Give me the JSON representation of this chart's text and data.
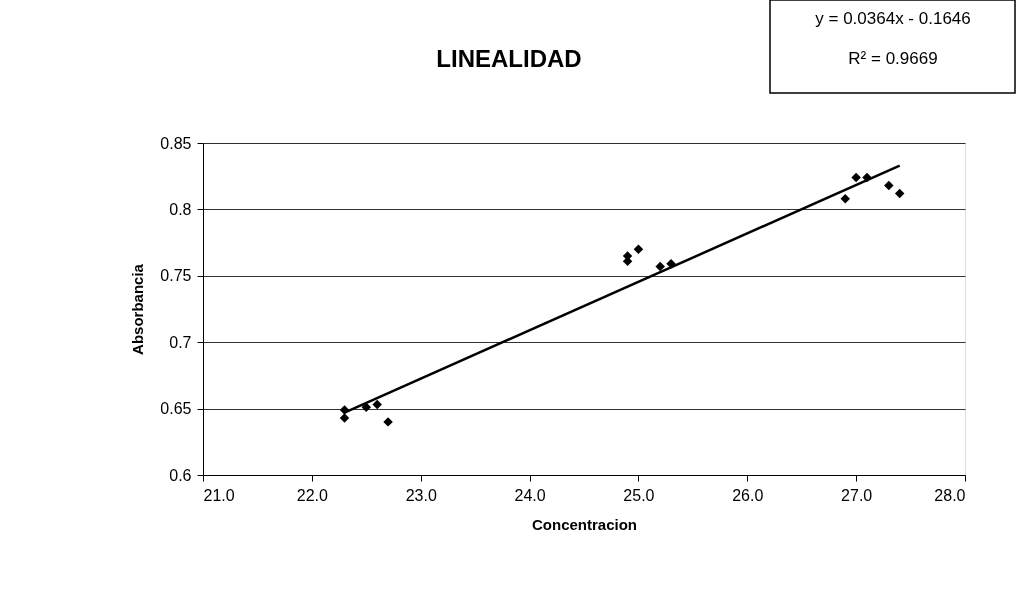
{
  "chart_data": {
    "type": "scatter",
    "title": "LINEALIDAD",
    "xlabel": "Concentracion",
    "ylabel": "Absorbancia",
    "annotations": [
      "y = 0.0364x - 0.1646",
      "R² = 0.9669"
    ],
    "xlim": [
      21.0,
      28.0
    ],
    "xticks": [
      {
        "value": 21,
        "label": "21.0"
      },
      {
        "value": 22,
        "label": "22.0"
      },
      {
        "value": 23,
        "label": "23.0"
      },
      {
        "value": 24,
        "label": "24.0"
      },
      {
        "value": 25,
        "label": "25.0"
      },
      {
        "value": 26,
        "label": "26.0"
      },
      {
        "value": 27,
        "label": "27.0"
      },
      {
        "value": 28,
        "label": "28.0"
      }
    ],
    "ylim": [
      0.6,
      0.85
    ],
    "yticks": [
      0.6,
      0.65,
      0.7,
      0.75,
      0.8,
      0.85
    ],
    "grid": "y",
    "series": [
      {
        "marker": "diamond",
        "color": "#000000",
        "x": [
          22.3,
          22.3,
          22.5,
          22.6,
          22.7,
          24.9,
          24.9,
          25.0,
          25.2,
          25.3,
          26.9,
          27.0,
          27.1,
          27.3,
          27.4
        ],
        "values": [
          0.649,
          0.643,
          0.651,
          0.653,
          0.64,
          0.761,
          0.765,
          0.77,
          0.757,
          0.759,
          0.808,
          0.824,
          0.824,
          0.818,
          0.812
        ]
      },
      {
        "type": "line",
        "color": "#000000",
        "x": [
          22.3,
          27.4
        ],
        "values": [
          0.647,
          0.833
        ]
      }
    ]
  }
}
